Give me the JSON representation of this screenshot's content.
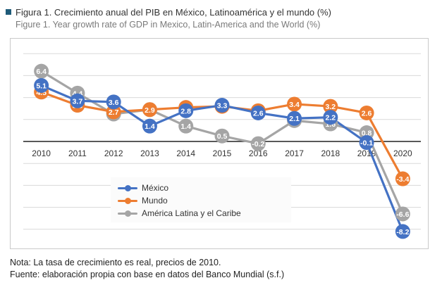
{
  "title": "Figura 1. Crecimiento anual del PIB en México, Latinoamérica y el mundo (%)",
  "subtitle": "Figure 1. Year growth rate of GDP in Mexico, Latin-America and the World (%)",
  "notes": {
    "nota": "Nota: La tasa de crecimiento es real, precios de 2010.",
    "fuente": "Fuente: elaboración propia con base en datos del Banco Mundial (s.f.)"
  },
  "chart_data": {
    "type": "line",
    "title": "",
    "xlabel": "",
    "ylabel": "",
    "categories": [
      "2010",
      "2011",
      "2012",
      "2013",
      "2014",
      "2015",
      "2016",
      "2017",
      "2018",
      "2019",
      "2020"
    ],
    "ylim": [
      -10,
      8
    ],
    "grid": true,
    "legend_position": "bottom-center",
    "series": [
      {
        "name": "México",
        "color": "#4472c4",
        "values": [
          5.1,
          3.7,
          3.6,
          1.4,
          2.8,
          3.3,
          2.6,
          2.1,
          2.2,
          -0.1,
          -8.2
        ]
      },
      {
        "name": "Mundo",
        "color": "#ed7d31",
        "values": [
          4.5,
          3.3,
          2.7,
          2.9,
          3.1,
          3.2,
          2.8,
          3.4,
          3.2,
          2.6,
          -3.4
        ]
      },
      {
        "name": "América Latina y el Caribe",
        "color": "#a5a5a5",
        "values": [
          6.4,
          4.4,
          2.5,
          2.9,
          1.4,
          0.5,
          -0.2,
          1.9,
          1.6,
          0.8,
          -6.6
        ]
      }
    ]
  }
}
